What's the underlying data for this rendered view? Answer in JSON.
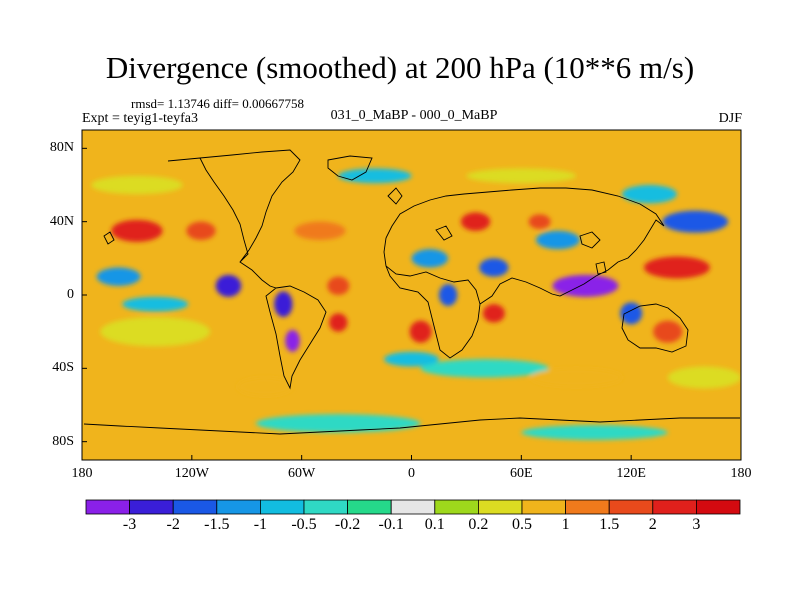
{
  "title": "Divergence (smoothed) at 200 hPa (10**6 m/s)",
  "stats_text": "rmsd= 1.13746 diff= 0.00667758",
  "experiment_text": "Expt = teyig1-teyfa3",
  "subtitle": "031_0_MaBP - 000_0_MaBP",
  "season": "DJF",
  "chart_data": {
    "type": "heatmap",
    "variable": "Divergence (smoothed) at 200 hPa",
    "units": "10**6 m/s",
    "projection": "cylindrical equidistant",
    "lon_range": [
      -180,
      180
    ],
    "lat_range": [
      -90,
      90
    ],
    "x_ticks": [
      {
        "value": -180,
        "label": "180"
      },
      {
        "value": -120,
        "label": "120W"
      },
      {
        "value": -60,
        "label": "60W"
      },
      {
        "value": 0,
        "label": "0"
      },
      {
        "value": 60,
        "label": "60E"
      },
      {
        "value": 120,
        "label": "120E"
      },
      {
        "value": 180,
        "label": "180"
      }
    ],
    "y_ticks": [
      {
        "value": 80,
        "label": "80N"
      },
      {
        "value": 40,
        "label": "40N"
      },
      {
        "value": 0,
        "label": "0"
      },
      {
        "value": -40,
        "label": "40S"
      },
      {
        "value": -80,
        "label": "80S"
      }
    ],
    "contour_levels": [
      "-3",
      "-2",
      "-1.5",
      "-1",
      "-0.5",
      "-0.2",
      "-0.1",
      "0.1",
      "0.2",
      "0.5",
      "1",
      "1.5",
      "2",
      "3"
    ],
    "colors": [
      "#8a20e8",
      "#3a1ed8",
      "#1a58e6",
      "#1696e6",
      "#12bde0",
      "#2fd9c4",
      "#25d98a",
      "#e6e6e6",
      "#9ed81c",
      "#dcdc22",
      "#f0b41c",
      "#f07a1c",
      "#e84a1c",
      "#e0201c",
      "#d40a10"
    ],
    "features": [
      {
        "lon": -160,
        "lat": 10,
        "value": -1,
        "rx": 12,
        "ry": 5
      },
      {
        "lon": -100,
        "lat": 5,
        "value": -2.5,
        "rx": 7,
        "ry": 6
      },
      {
        "lon": -70,
        "lat": -5,
        "value": -2,
        "rx": 5,
        "ry": 7
      },
      {
        "lon": -65,
        "lat": -25,
        "value": -3,
        "rx": 4,
        "ry": 6
      },
      {
        "lon": -140,
        "lat": -5,
        "value": -0.5,
        "rx": 18,
        "ry": 4
      },
      {
        "lon": 10,
        "lat": 20,
        "value": -1,
        "rx": 10,
        "ry": 5
      },
      {
        "lon": 20,
        "lat": 0,
        "value": -1.5,
        "rx": 5,
        "ry": 6
      },
      {
        "lon": 45,
        "lat": 15,
        "value": -1.5,
        "rx": 8,
        "ry": 5
      },
      {
        "lon": 80,
        "lat": 30,
        "value": -1,
        "rx": 12,
        "ry": 5
      },
      {
        "lon": 95,
        "lat": 5,
        "value": -3,
        "rx": 18,
        "ry": 6
      },
      {
        "lon": 120,
        "lat": -10,
        "value": -1.5,
        "rx": 6,
        "ry": 6
      },
      {
        "lon": 155,
        "lat": 40,
        "value": -1.5,
        "rx": 18,
        "ry": 6
      },
      {
        "lon": 130,
        "lat": 55,
        "value": -0.5,
        "rx": 15,
        "ry": 5
      },
      {
        "lon": -20,
        "lat": 65,
        "value": -0.5,
        "rx": 20,
        "ry": 4
      },
      {
        "lon": 40,
        "lat": -40,
        "value": -0.2,
        "rx": 35,
        "ry": 5
      },
      {
        "lon": -40,
        "lat": -70,
        "value": -0.2,
        "rx": 45,
        "ry": 5
      },
      {
        "lon": 100,
        "lat": -75,
        "value": -0.2,
        "rx": 40,
        "ry": 4
      },
      {
        "lon": 0,
        "lat": -35,
        "value": -0.5,
        "rx": 15,
        "ry": 4
      },
      {
        "lon": -150,
        "lat": 35,
        "value": 3,
        "rx": 14,
        "ry": 6
      },
      {
        "lon": -115,
        "lat": 35,
        "value": 2,
        "rx": 8,
        "ry": 5
      },
      {
        "lon": -50,
        "lat": 35,
        "value": 1.5,
        "rx": 14,
        "ry": 5
      },
      {
        "lon": -40,
        "lat": 5,
        "value": 2,
        "rx": 6,
        "ry": 5
      },
      {
        "lon": -40,
        "lat": -15,
        "value": 3,
        "rx": 5,
        "ry": 5
      },
      {
        "lon": 5,
        "lat": -20,
        "value": 2.5,
        "rx": 6,
        "ry": 6
      },
      {
        "lon": 35,
        "lat": 40,
        "value": 2.5,
        "rx": 8,
        "ry": 5
      },
      {
        "lon": 45,
        "lat": -10,
        "value": 2.5,
        "rx": 6,
        "ry": 5
      },
      {
        "lon": 70,
        "lat": 40,
        "value": 2,
        "rx": 6,
        "ry": 4
      },
      {
        "lon": 145,
        "lat": 15,
        "value": 3,
        "rx": 18,
        "ry": 6
      },
      {
        "lon": 140,
        "lat": -20,
        "value": 2,
        "rx": 8,
        "ry": 6
      },
      {
        "lon": -140,
        "lat": -20,
        "value": 0.5,
        "rx": 30,
        "ry": 8
      },
      {
        "lon": -150,
        "lat": 60,
        "value": 0.5,
        "rx": 25,
        "ry": 5
      },
      {
        "lon": 60,
        "lat": 65,
        "value": 0.5,
        "rx": 30,
        "ry": 4
      },
      {
        "lon": 90,
        "lat": -45,
        "value": 1,
        "rx": 25,
        "ry": 5
      },
      {
        "lon": -80,
        "lat": -50,
        "value": 1,
        "rx": 15,
        "ry": 5
      },
      {
        "lon": 160,
        "lat": -45,
        "value": 0.5,
        "rx": 20,
        "ry": 6
      }
    ]
  }
}
